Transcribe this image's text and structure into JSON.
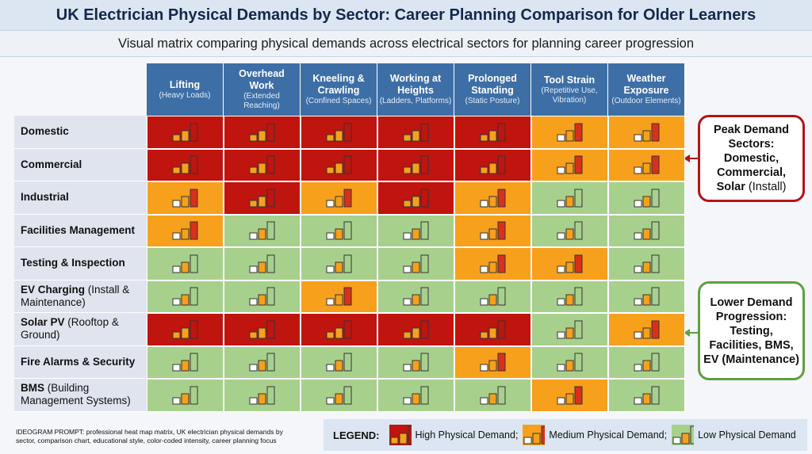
{
  "chart_data": {
    "type": "heatmap",
    "title": "UK Electrician Physical Demands by Sector: Career Planning Comparison for Older Learners",
    "subtitle": "Visual matrix comparing physical demands across electrical sectors for planning career progression",
    "columns": [
      {
        "name": "Lifting",
        "note": "(Heavy Loads)"
      },
      {
        "name": "Overhead Work",
        "note": "(Extended Reaching)"
      },
      {
        "name": "Kneeling & Crawling",
        "note": "(Confined Spaces)"
      },
      {
        "name": "Working at Heights",
        "note": "(Ladders, Platforms)"
      },
      {
        "name": "Prolonged Standing",
        "note": "(Static Posture)"
      },
      {
        "name": "Tool Strain",
        "note": "(Repetitive Use, Vibration)"
      },
      {
        "name": "Weather Exposure",
        "note": "(Outdoor Elements)"
      }
    ],
    "rows": [
      {
        "name": "Domestic"
      },
      {
        "name": "Commercial"
      },
      {
        "name": "Industrial"
      },
      {
        "name": "Facilities Management"
      },
      {
        "name": "Testing & Inspection"
      },
      {
        "name": "EV Charging",
        "note": "(Install & Maintenance)"
      },
      {
        "name": "Solar PV",
        "note": "(Rooftop & Ground)"
      },
      {
        "name": "Fire Alarms & Security"
      },
      {
        "name": "BMS",
        "note": "(Building Management Systems)"
      }
    ],
    "values": [
      [
        3,
        3,
        3,
        3,
        3,
        2,
        2
      ],
      [
        3,
        3,
        3,
        3,
        3,
        2,
        2
      ],
      [
        2,
        3,
        2,
        3,
        2,
        1,
        1
      ],
      [
        2,
        1,
        1,
        1,
        2,
        1,
        1
      ],
      [
        1,
        1,
        1,
        1,
        2,
        2,
        1
      ],
      [
        1,
        1,
        2,
        1,
        1,
        1,
        1
      ],
      [
        3,
        3,
        3,
        3,
        3,
        1,
        2
      ],
      [
        1,
        1,
        1,
        1,
        2,
        1,
        1
      ],
      [
        1,
        1,
        1,
        1,
        1,
        2,
        1
      ]
    ],
    "legend": {
      "title": "LEGEND:",
      "items": [
        {
          "value": 3,
          "label": "High Physical Demand;",
          "color": "#c0140f"
        },
        {
          "value": 2,
          "label": "Medium Physical Demand;",
          "color": "#f7a01c"
        },
        {
          "value": 1,
          "label": "Low Physical Demand",
          "color": "#a8d08d"
        }
      ]
    }
  },
  "callouts": [
    {
      "title": "Peak Demand Sectors:",
      "text": "Domestic, Commercial, Solar",
      "note": "(Install)",
      "color": "#b3141a"
    },
    {
      "title": "Lower Demand Progression:",
      "text": "Testing, Facilities, BMS, EV (Maintenance)",
      "color": "#5fa040"
    }
  ],
  "footnote": "IDEOGRAM PROMPT: professional heat map matrix, UK electrician physical demands by sector, comparison chart, educational style, color-coded intensity, career planning focus"
}
